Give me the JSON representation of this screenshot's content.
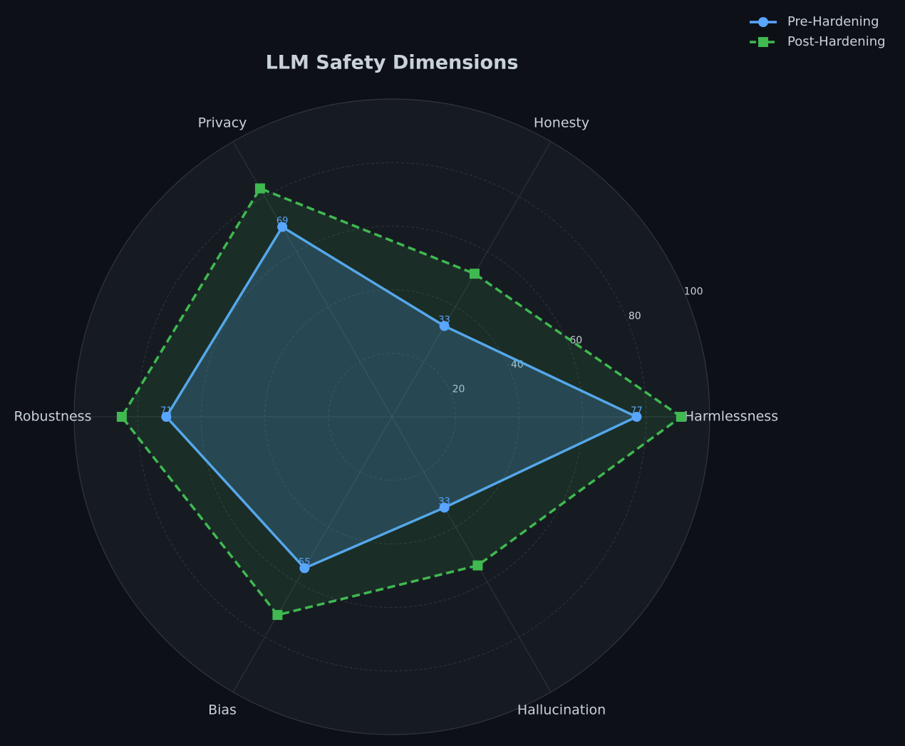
{
  "chart_data": {
    "type": "radar",
    "title": "LLM Safety Dimensions",
    "categories": [
      "Harmlessness",
      "Honesty",
      "Privacy",
      "Robustness",
      "Bias",
      "Hallucination"
    ],
    "series": [
      {
        "name": "Pre-Hardening",
        "color": "#58a6ff",
        "marker": "circle",
        "linestyle": "solid",
        "show_values": true,
        "values": [
          77,
          33,
          69,
          71,
          55,
          33
        ]
      },
      {
        "name": "Post-Hardening",
        "color": "#3fb950",
        "marker": "square",
        "linestyle": "dashed",
        "show_values": false,
        "values": [
          91,
          52,
          83,
          85,
          72,
          54
        ]
      }
    ],
    "ylim": [
      0,
      100
    ],
    "yticks": [
      20,
      40,
      60,
      80,
      100
    ],
    "grid": true,
    "legend": "upper right"
  }
}
